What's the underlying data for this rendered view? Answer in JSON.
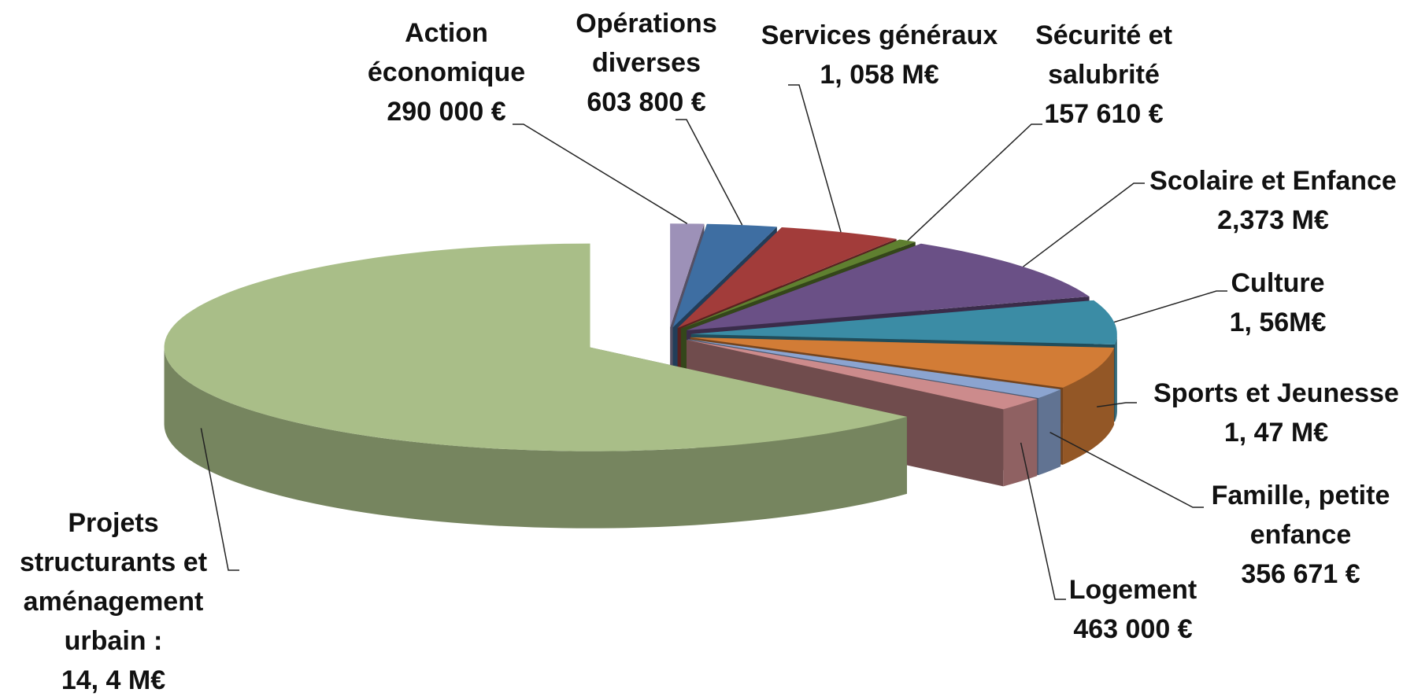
{
  "chart_data": {
    "type": "pie3d",
    "categories": [
      "Action économique",
      "Opérations diverses",
      "Services généraux",
      "Sécurité et salubrité",
      "Scolaire et Enfance",
      "Culture",
      "Sports et Jeunesse",
      "Famille, petite enfance",
      "Logement",
      "Projets structurants et aménagement urbain :"
    ],
    "values": [
      290000,
      603800,
      1058000,
      157610,
      2373000,
      1560000,
      1470000,
      356671,
      463000,
      14400000
    ],
    "value_labels": [
      "290 000 €",
      "603 800 €",
      "1, 058 M€",
      "157 610 €",
      "2,373 M€",
      "1, 56M€",
      "1, 47 M€",
      "356 671 €",
      "463 000 €",
      "14, 4 M€"
    ],
    "colors": [
      "#9d91b8",
      "#3e6ea2",
      "#a23c3a",
      "#5f8030",
      "#6a5086",
      "#3b8ca5",
      "#d27c36",
      "#8ba4d0",
      "#cc8b8c",
      "#a9be88"
    ]
  }
}
